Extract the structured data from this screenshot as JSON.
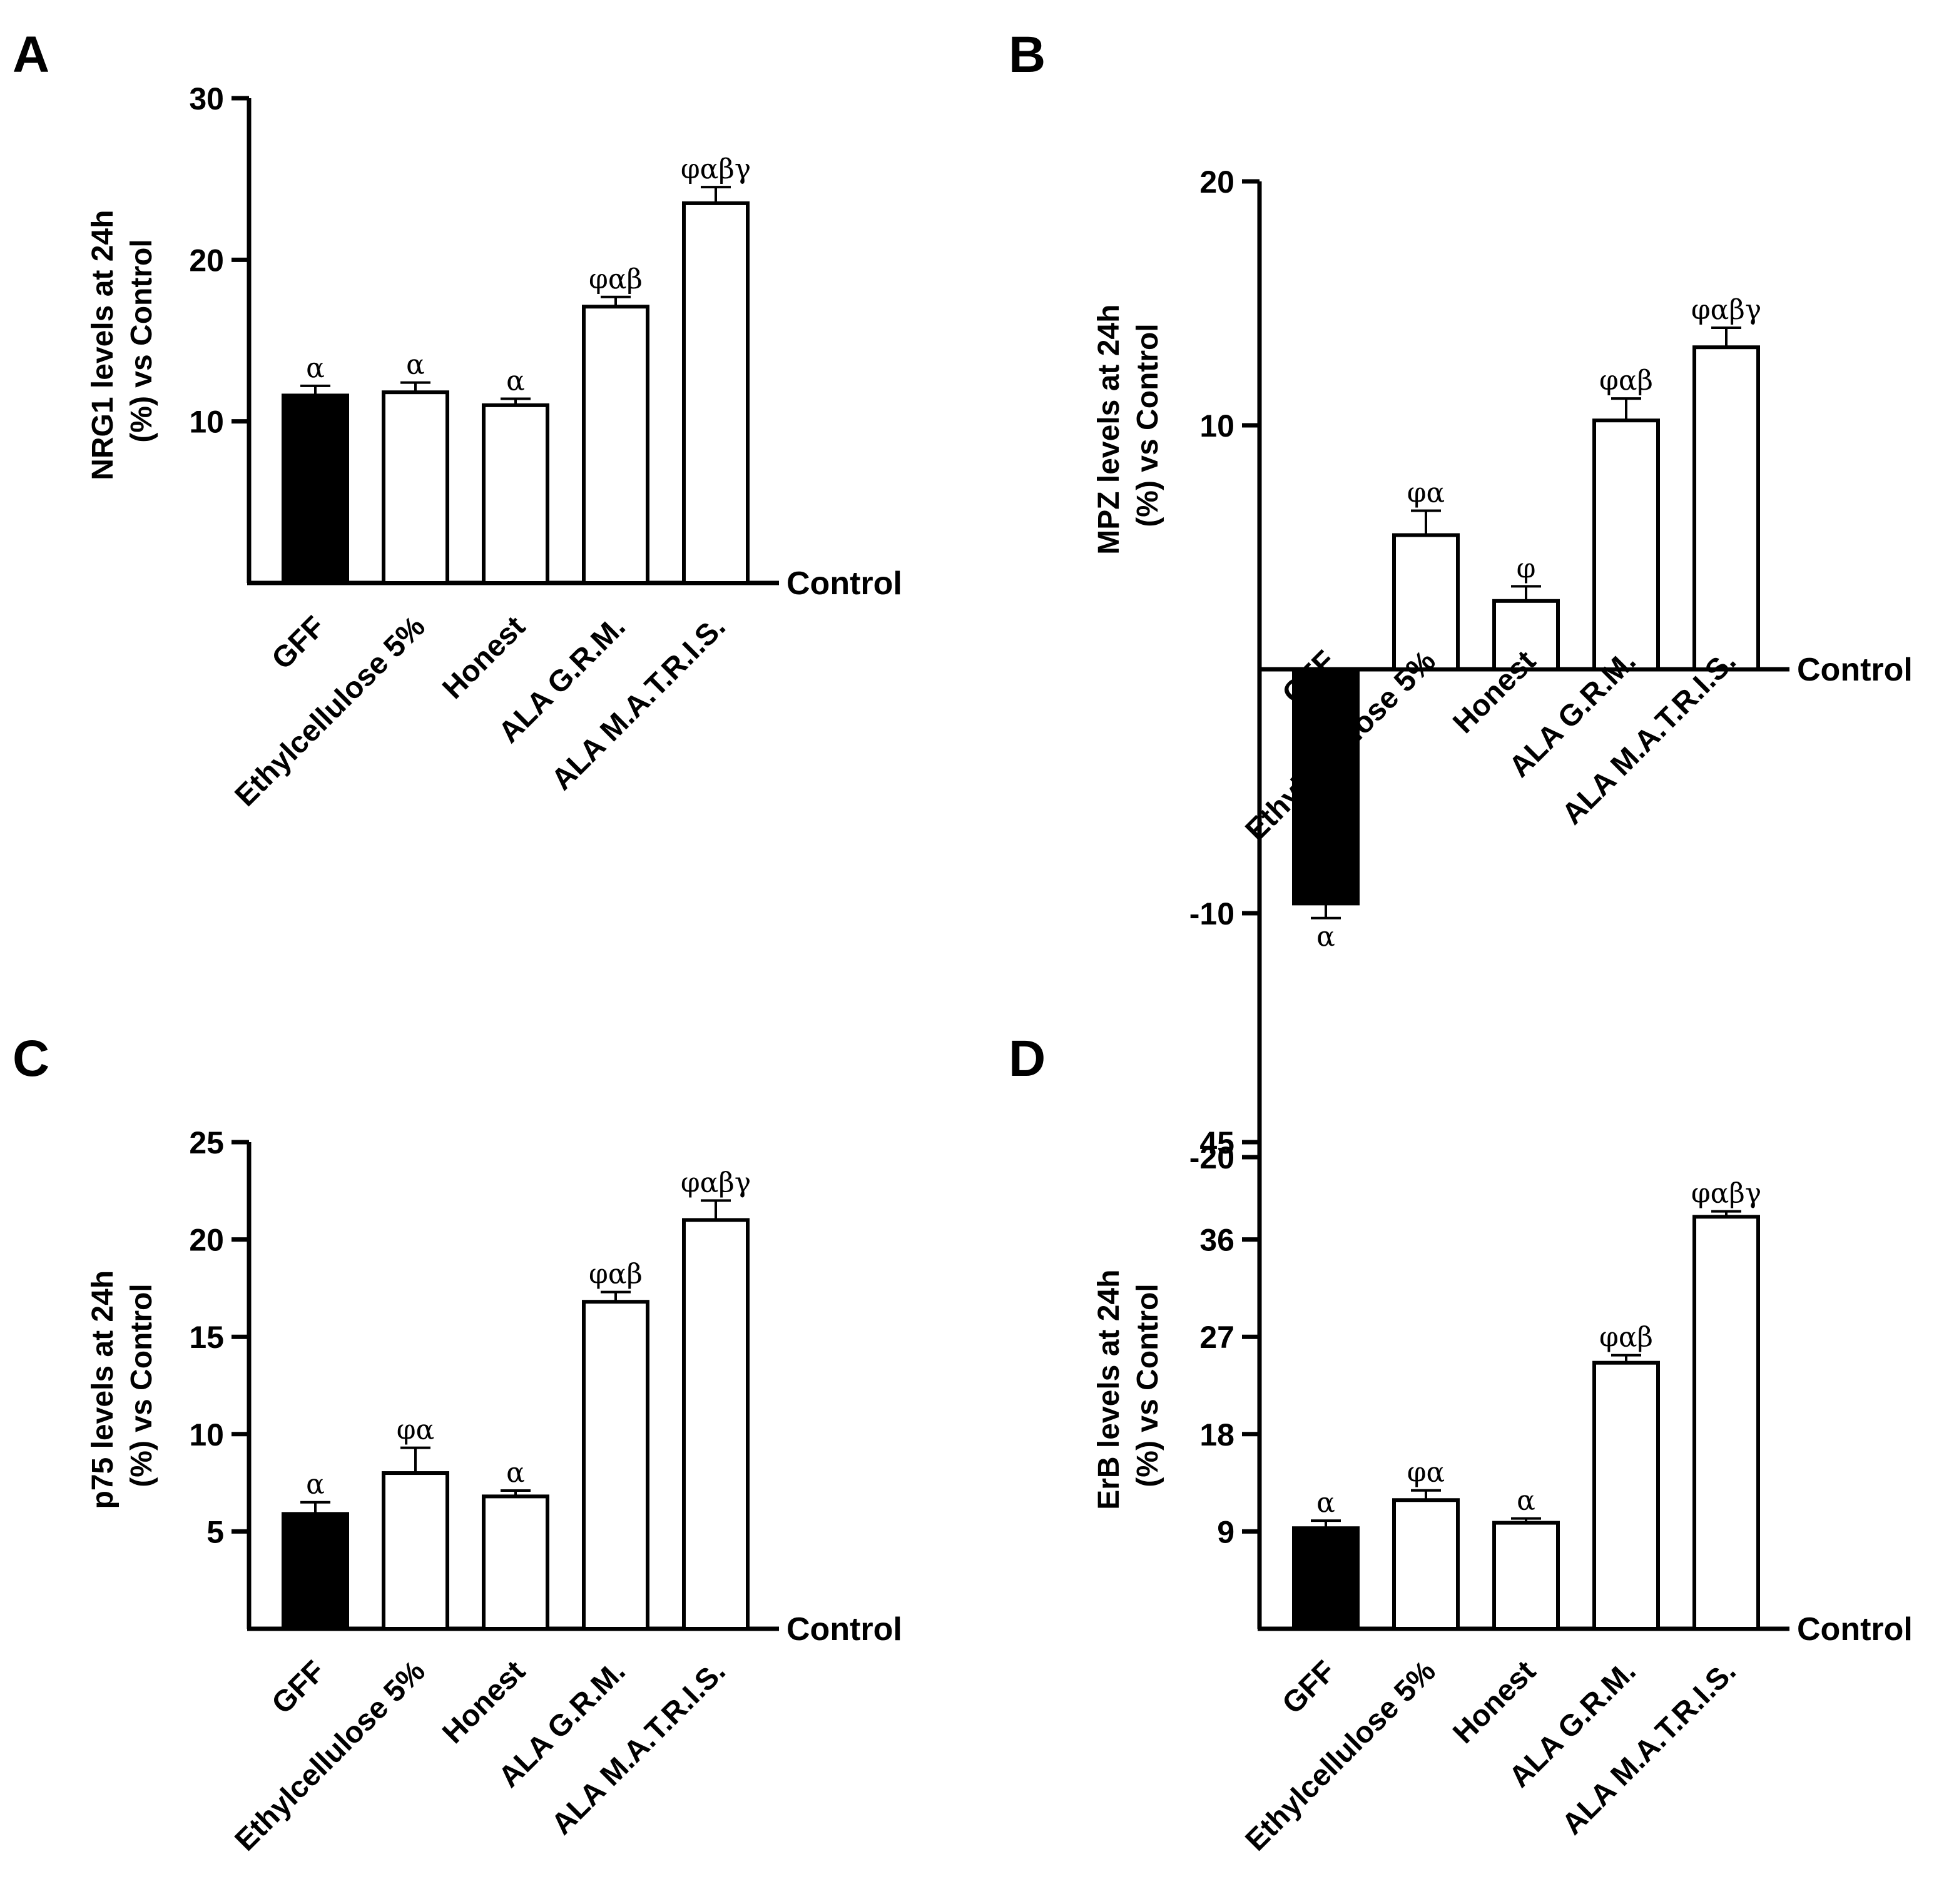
{
  "chart_data": [
    {
      "type": "bar",
      "panel": "A",
      "ylabel_line1": "NRG1 levels at 24h",
      "ylabel_line2": "(%) vs Control",
      "baseline_label": "Control",
      "categories": [
        "GFF",
        "Ethylcellulose 5%",
        "Honest",
        "ALA G.R.M.",
        "ALA M.A.T.R.I.S."
      ],
      "values": [
        11.6,
        11.8,
        11.0,
        17.1,
        23.5
      ],
      "errors": [
        0.6,
        0.6,
        0.4,
        0.6,
        1.0
      ],
      "colors": [
        "#000000",
        "#ffffff",
        "#ffffff",
        "#ffffff",
        "#ffffff"
      ],
      "significance": [
        "α",
        "α",
        "α",
        "φαβ",
        "φαβγ"
      ],
      "yticks": [
        10,
        20,
        30
      ],
      "ylim": [
        0,
        30
      ]
    },
    {
      "type": "bar",
      "panel": "B",
      "ylabel_line1": "MPZ levels at 24h",
      "ylabel_line2": "(%) vs Control",
      "baseline_label": "Control",
      "categories": [
        "GFF",
        "Ethylcellulose 5%",
        "Honest",
        "ALA G.R.M.",
        "ALA M.A.T.R.I.S."
      ],
      "values": [
        -9.6,
        5.5,
        2.8,
        10.2,
        13.2
      ],
      "errors": [
        0.6,
        1.0,
        0.6,
        0.9,
        0.8
      ],
      "colors": [
        "#000000",
        "#ffffff",
        "#ffffff",
        "#ffffff",
        "#ffffff"
      ],
      "significance": [
        "α",
        "φα",
        "φ",
        "φαβ",
        "φαβγ"
      ],
      "yticks": [
        -20,
        -10,
        10,
        20
      ],
      "ylim": [
        -20,
        20
      ]
    },
    {
      "type": "bar",
      "panel": "C",
      "ylabel_line1": "p75 levels at 24h",
      "ylabel_line2": "(%) vs Control",
      "baseline_label": "Control",
      "categories": [
        "GFF",
        "Ethylcellulose 5%",
        "Honest",
        "ALA G.R.M.",
        "ALA M.A.T.R.I.S."
      ],
      "values": [
        5.9,
        8.0,
        6.8,
        16.8,
        21.0
      ],
      "errors": [
        0.6,
        1.3,
        0.3,
        0.5,
        1.0
      ],
      "colors": [
        "#000000",
        "#ffffff",
        "#ffffff",
        "#ffffff",
        "#ffffff"
      ],
      "significance": [
        "α",
        "φα",
        "α",
        "φαβ",
        "φαβγ"
      ],
      "yticks": [
        5,
        10,
        15,
        20,
        25
      ],
      "ylim": [
        0,
        25
      ]
    },
    {
      "type": "bar",
      "panel": "D",
      "ylabel_line1": "ErB levels at 24h",
      "ylabel_line2": "(%) vs Control",
      "baseline_label": "Control",
      "categories": [
        "GFF",
        "Ethylcellulose 5%",
        "Honest",
        "ALA G.R.M.",
        "ALA M.A.T.R.I.S."
      ],
      "values": [
        9.3,
        11.9,
        9.8,
        24.6,
        38.1
      ],
      "errors": [
        0.7,
        0.9,
        0.4,
        0.7,
        0.5
      ],
      "colors": [
        "#000000",
        "#ffffff",
        "#ffffff",
        "#ffffff",
        "#ffffff"
      ],
      "significance": [
        "α",
        "φα",
        "α",
        "φαβ",
        "φαβγ"
      ],
      "yticks": [
        9,
        18,
        27,
        36,
        45
      ],
      "ylim": [
        0,
        45
      ]
    }
  ]
}
